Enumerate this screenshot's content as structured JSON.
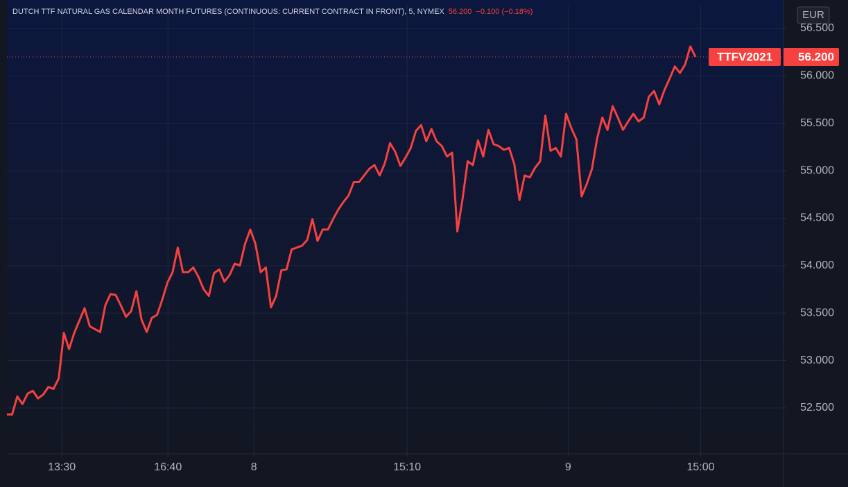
{
  "chart_data": {
    "type": "line",
    "title": "DUTCH TTF NATURAL GAS CALENDAR MONTH FUTURES (CONTINUOUS: CURRENT CONTRACT IN FRONT), 5, NYMEX",
    "last_value": {
      "value": 56.2,
      "label": "56.200"
    },
    "change": "−0.100 (−0.18%)",
    "currency": "EUR",
    "symbol": "TTFV2021",
    "series": [
      {
        "color": "#f5413f",
        "values": [
          52.43,
          52.43,
          52.62,
          52.54,
          52.65,
          52.68,
          52.6,
          52.64,
          52.72,
          52.7,
          52.81,
          53.29,
          53.12,
          53.29,
          53.42,
          53.55,
          53.36,
          53.33,
          53.3,
          53.58,
          53.7,
          53.69,
          53.58,
          53.46,
          53.52,
          53.73,
          53.43,
          53.3,
          53.45,
          53.48,
          53.64,
          53.82,
          53.93,
          54.19,
          53.93,
          53.93,
          53.98,
          53.88,
          53.75,
          53.68,
          53.92,
          53.96,
          53.83,
          53.9,
          54.02,
          54.0,
          54.23,
          54.38,
          54.23,
          53.93,
          53.98,
          53.56,
          53.68,
          53.95,
          53.96,
          54.17,
          54.19,
          54.21,
          54.27,
          54.49,
          54.26,
          54.38,
          54.38,
          54.49,
          54.59,
          54.67,
          54.74,
          54.88,
          54.88,
          54.95,
          55.02,
          55.06,
          54.95,
          55.08,
          55.29,
          55.2,
          55.05,
          55.14,
          55.24,
          55.42,
          55.48,
          55.31,
          55.44,
          55.31,
          55.26,
          55.15,
          55.19,
          54.36,
          54.7,
          55.1,
          55.06,
          55.32,
          55.15,
          55.43,
          55.28,
          55.26,
          55.22,
          55.24,
          55.07,
          54.69,
          54.95,
          54.93,
          55.03,
          55.1,
          55.58,
          55.21,
          55.24,
          55.15,
          55.6,
          55.45,
          55.33,
          54.73,
          54.86,
          55.02,
          55.34,
          55.56,
          55.43,
          55.68,
          55.56,
          55.43,
          55.52,
          55.6,
          55.52,
          55.56,
          55.78,
          55.84,
          55.7,
          55.85,
          55.97,
          56.1,
          56.03,
          56.12,
          56.31,
          56.2
        ]
      }
    ],
    "xlim": [
      0,
      150
    ],
    "xticks": [
      {
        "value": 10.6,
        "label": "13:30"
      },
      {
        "value": 31.1,
        "label": "16:40"
      },
      {
        "value": 47.7,
        "label": "8"
      },
      {
        "value": 77.3,
        "label": "15:10"
      },
      {
        "value": 108.4,
        "label": "9"
      },
      {
        "value": 134,
        "label": "15:00"
      }
    ],
    "ylim": [
      52.017,
      56.741
    ],
    "yticks": [
      {
        "value": 52.5,
        "label": "52.500"
      },
      {
        "value": 53,
        "label": "53.000"
      },
      {
        "value": 53.5,
        "label": "53.500"
      },
      {
        "value": 54,
        "label": "54.000"
      },
      {
        "value": 54.5,
        "label": "54.500"
      },
      {
        "value": 55,
        "label": "55.000"
      },
      {
        "value": 55.5,
        "label": "55.500"
      },
      {
        "value": 56,
        "label": "56.000"
      },
      {
        "value": 56.5,
        "label": "56.500"
      }
    ],
    "grid": true
  }
}
